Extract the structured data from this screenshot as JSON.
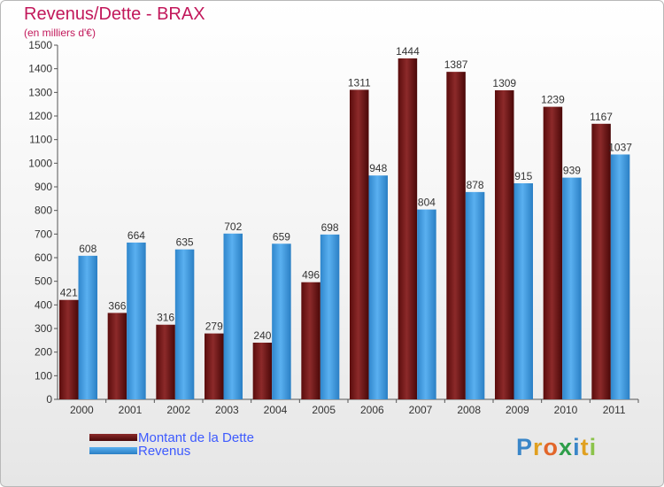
{
  "title": "Revenus/Dette - BRAX",
  "subtitle": "(en milliers d'€)",
  "logo": {
    "letters": [
      "P",
      "r",
      "o",
      "x",
      "i",
      "t",
      "i"
    ],
    "colors": [
      "#3a86c8",
      "#e0a020",
      "#e2662a",
      "#2e9e4a",
      "#3a86c8",
      "#e0a020",
      "#8bc34a"
    ]
  },
  "chart_data": {
    "type": "bar",
    "categories": [
      "2000",
      "2001",
      "2002",
      "2003",
      "2004",
      "2005",
      "2006",
      "2007",
      "2008",
      "2009",
      "2010",
      "2011"
    ],
    "series": [
      {
        "name": "Montant de la Dette",
        "color": "#7a1a1a",
        "values": [
          421,
          366,
          316,
          279,
          240,
          496,
          1311,
          1444,
          1387,
          1309,
          1239,
          1167
        ]
      },
      {
        "name": "Revenus",
        "color": "#4aa3e8",
        "values": [
          608,
          664,
          635,
          702,
          659,
          698,
          948,
          804,
          878,
          915,
          939,
          1037
        ]
      }
    ],
    "ylim": [
      0,
      1500
    ],
    "yticks": [
      0,
      100,
      200,
      300,
      400,
      500,
      600,
      700,
      800,
      900,
      1000,
      1100,
      1200,
      1300,
      1400,
      1500
    ],
    "grid": false,
    "legend_position": "bottom-left"
  }
}
